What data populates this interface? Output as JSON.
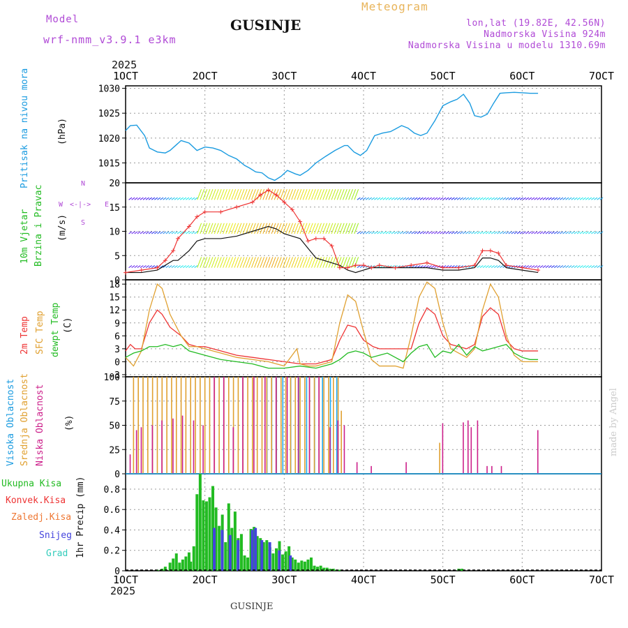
{
  "header": {
    "model_label": "Model",
    "model_name": "wrf-nmm_v3.9.1 e3km",
    "title": "GUSINJE",
    "meteogram": "Meteogram",
    "lonlat": "lon,lat (19.82E, 42.56N)",
    "elevation": "Nadmorska Visina 924m",
    "model_elevation": "Nadmorska Visina u modelu 1310.69m",
    "year_top": "2025",
    "footer_title": "GUSINJE",
    "watermark": "made by Angel"
  },
  "colors": {
    "pressure": "#1a9be0",
    "temp2m": "#ee3333",
    "sfc": "#e0a030",
    "dewpt": "#22bb22",
    "high_cloud": "#22aaee",
    "mid_cloud": "#e0a030",
    "low_cloud": "#cc1f8a",
    "wind_speed": "#111111",
    "wind_gust": "#ee3333",
    "precip_total": "#22bb22",
    "precip_conv": "#ee3333",
    "precip_strat": "#ee7733",
    "snow": "#4444dd",
    "graupel": "#33ccbb"
  },
  "chart_data": [
    {
      "id": "pressure",
      "type": "line",
      "title": "Pritisak na nivou mora",
      "ylabel": "(hPa)",
      "ylim": [
        1011,
        1030.5
      ],
      "yticks": [
        1015,
        1020,
        1025,
        1030
      ],
      "x": [
        1,
        1.3,
        1.7,
        2.2,
        2.5,
        3.0,
        3.5,
        3.8,
        4.5,
        5.0,
        5.5,
        6.0,
        6.5,
        7.0,
        7.5,
        8.0,
        8.5,
        8.8,
        9.2,
        9.6,
        10.0,
        10.4,
        10.8,
        11.2,
        11.7,
        12.0,
        12.5,
        13.0,
        13.6,
        14.2,
        14.8,
        15.0,
        15.4,
        15.8,
        16.2,
        16.7,
        17.2,
        17.7,
        18.0,
        18.4,
        18.8,
        19.2,
        19.6,
        20.0,
        20.5,
        21.0,
        21.5,
        21.9,
        22.3,
        22.7,
        23.0,
        23.4,
        23.8,
        24.2,
        24.6,
        25.0,
        25.5,
        26.0,
        26.5,
        27.0
      ],
      "values": [
        1021.5,
        1022.5,
        1022.6,
        1020.5,
        1018.0,
        1017.2,
        1017.0,
        1017.5,
        1019.5,
        1019.0,
        1017.5,
        1018.2,
        1018.0,
        1017.5,
        1016.5,
        1015.8,
        1014.5,
        1014.0,
        1013.2,
        1013.0,
        1012.0,
        1011.5,
        1012.3,
        1013.5,
        1012.8,
        1012.5,
        1013.5,
        1015.0,
        1016.3,
        1017.5,
        1018.5,
        1018.5,
        1017.2,
        1016.5,
        1017.5,
        1020.5,
        1021.0,
        1021.3,
        1021.8,
        1022.5,
        1022.0,
        1021.0,
        1020.5,
        1021.0,
        1023.5,
        1026.5,
        1027.3,
        1027.8,
        1028.8,
        1027.0,
        1024.5,
        1024.2,
        1024.8,
        1027.0,
        1029.0,
        1029.1,
        1029.2,
        1029.1,
        1029.0,
        1029.0
      ]
    },
    {
      "id": "wind",
      "type": "line",
      "title": "10m Vjetar Brzina i Pravac",
      "title_lines": [
        "10m Vjetar",
        "Brzina i Pravac"
      ],
      "ylabel": "(m/s)",
      "compass": [
        "N",
        "<-|->",
        "W",
        "E",
        "S"
      ],
      "ylim": [
        0,
        20
      ],
      "yticks": [
        0,
        5,
        10,
        15,
        20
      ],
      "x": [
        1,
        2,
        3,
        3.5,
        4,
        4.3,
        5,
        5.5,
        6,
        7,
        8,
        9,
        9.5,
        10,
        10.5,
        11,
        11.5,
        12,
        12.5,
        13,
        13.5,
        14,
        14.5,
        15,
        15.5,
        16,
        16.5,
        17,
        18,
        19,
        20,
        21,
        22,
        23,
        23.5,
        24,
        24.5,
        25,
        26,
        27
      ],
      "speed": [
        1.5,
        1.5,
        2.0,
        3.0,
        4.0,
        4.0,
        6.0,
        8.0,
        8.5,
        8.5,
        9.0,
        10.0,
        10.5,
        11.0,
        10.5,
        9.5,
        9.0,
        8.5,
        6.5,
        4.5,
        4.0,
        3.5,
        3.0,
        2.0,
        1.5,
        2.0,
        2.5,
        2.5,
        2.5,
        2.5,
        2.5,
        2.0,
        2.0,
        2.5,
        4.5,
        4.5,
        4.0,
        2.5,
        2.0,
        1.5
      ],
      "gust": [
        1.5,
        2.0,
        2.5,
        4.0,
        6.0,
        8.5,
        11.0,
        13.0,
        14.0,
        14.0,
        15.0,
        16.0,
        17.5,
        18.5,
        17.5,
        16.0,
        14.5,
        12.0,
        8.0,
        8.5,
        8.5,
        7.0,
        2.5,
        2.5,
        3.0,
        3.0,
        2.5,
        3.0,
        2.5,
        3.0,
        3.5,
        2.5,
        2.5,
        3.0,
        6.0,
        6.0,
        5.5,
        3.0,
        2.5,
        2.0
      ]
    },
    {
      "id": "temperature",
      "type": "line",
      "title_lines": [
        "2m Temp",
        "SFC Temp",
        "dewpt Temp"
      ],
      "ylabel": "(C)",
      "ylim": [
        -3.5,
        19
      ],
      "yticks": [
        -3,
        0,
        3,
        6,
        9,
        12,
        15,
        18
      ],
      "series": [
        {
          "name": "2m Temp",
          "x": [
            1,
            1.3,
            1.6,
            2.0,
            2.5,
            3.0,
            3.3,
            3.8,
            4.5,
            5.0,
            5.5,
            6.0,
            7.0,
            8.0,
            9.0,
            10.0,
            11.0,
            12.0,
            13.0,
            14.0,
            14.5,
            15.0,
            15.5,
            16.0,
            16.6,
            17.0,
            18.0,
            19.0,
            19.5,
            20.0,
            20.5,
            21.0,
            21.5,
            22.0,
            22.5,
            23.0,
            23.5,
            24.0,
            24.5,
            25.0,
            25.5,
            26.0,
            27.0
          ],
          "values": [
            2.5,
            4.0,
            3.0,
            3.0,
            9.0,
            12.0,
            11.0,
            8.0,
            6.0,
            4.0,
            3.5,
            3.5,
            2.5,
            1.5,
            1.0,
            0.5,
            0.0,
            -0.5,
            -0.5,
            0.5,
            5.0,
            8.5,
            8.0,
            5.0,
            3.5,
            3.0,
            3.0,
            3.0,
            9.0,
            12.5,
            11.0,
            6.0,
            4.0,
            3.5,
            3.0,
            4.0,
            10.5,
            12.5,
            11.0,
            5.0,
            3.0,
            2.5,
            2.5
          ]
        },
        {
          "name": "SFC Temp",
          "x": [
            1,
            1.5,
            2.0,
            2.5,
            3.0,
            3.3,
            3.8,
            4.5,
            5.0,
            5.5,
            6.0,
            7.0,
            8.0,
            9.0,
            10.0,
            11.0,
            11.8,
            12.0,
            12.5,
            13.0,
            14.0,
            14.5,
            15.0,
            15.5,
            16.0,
            16.5,
            17.0,
            18.0,
            18.5,
            19.0,
            19.5,
            20.0,
            20.5,
            21.0,
            21.5,
            22.0,
            22.5,
            23.0,
            23.5,
            24.0,
            24.5,
            25.0,
            25.5,
            26.0,
            27.0
          ],
          "values": [
            1.0,
            -1.0,
            2.5,
            12.0,
            18.0,
            17.0,
            11.0,
            6.0,
            3.5,
            3.5,
            3.0,
            2.0,
            1.0,
            0.5,
            0.0,
            -1.0,
            3.0,
            -0.5,
            -1.0,
            -1.0,
            0.0,
            9.0,
            15.5,
            14.0,
            7.0,
            0.5,
            -1.0,
            -1.0,
            -1.5,
            6.0,
            15.0,
            18.5,
            17.0,
            9.0,
            3.0,
            2.0,
            1.0,
            3.0,
            12.0,
            18.0,
            15.0,
            6.0,
            1.5,
            0.0,
            0.0
          ]
        },
        {
          "name": "dewpt Temp",
          "x": [
            1,
            1.5,
            2.0,
            2.5,
            3.0,
            3.5,
            4.0,
            4.5,
            5.0,
            5.5,
            6.0,
            7.0,
            8.0,
            9.0,
            10.0,
            11.0,
            12.0,
            13.0,
            14.0,
            14.5,
            15.0,
            15.5,
            16.0,
            16.5,
            17.0,
            17.5,
            18.0,
            18.5,
            19.0,
            19.5,
            20.0,
            20.5,
            21.0,
            21.5,
            22.0,
            22.5,
            23.0,
            23.5,
            24.0,
            24.5,
            25.0,
            25.5,
            26.0,
            26.5,
            27.0
          ],
          "values": [
            1.0,
            2.0,
            2.5,
            3.5,
            3.5,
            4.0,
            3.5,
            4.0,
            2.5,
            2.0,
            1.5,
            0.5,
            0.0,
            -0.5,
            -1.5,
            -1.5,
            -1.0,
            -1.5,
            -0.5,
            0.5,
            2.0,
            2.5,
            2.0,
            1.0,
            1.5,
            2.0,
            1.0,
            0.0,
            2.0,
            3.5,
            4.0,
            1.0,
            2.5,
            2.0,
            4.0,
            1.5,
            3.5,
            2.5,
            3.0,
            3.5,
            4.0,
            2.0,
            1.0,
            0.5,
            0.5
          ]
        }
      ]
    },
    {
      "id": "clouds",
      "type": "bar",
      "title_lines": [
        "Visoka Oblacnost",
        "Srednja Oblacnost",
        "Niska Oblacnost"
      ],
      "ylabel": "(%)",
      "ylim": [
        0,
        100
      ],
      "yticks": [
        0,
        25,
        50,
        75,
        100
      ],
      "series": [
        {
          "name": "Visoka Oblacnost",
          "x": [
            10.0,
            10.3,
            10.6,
            11.0,
            11.5,
            12.0,
            12.5,
            13.0,
            13.5,
            14.0,
            14.4
          ],
          "values": [
            100,
            100,
            100,
            100,
            100,
            100,
            100,
            100,
            100,
            100,
            100
          ]
        },
        {
          "name": "Srednja Oblacnost",
          "x": [
            1.5,
            1.8,
            2.1,
            2.4,
            2.7,
            3.0,
            3.3,
            3.6,
            3.9,
            4.2,
            4.5,
            4.8,
            5.1,
            5.4,
            5.7,
            6.0,
            6.3,
            6.6,
            6.9,
            7.2,
            7.5,
            7.8,
            8.1,
            8.4,
            8.7,
            9.0,
            9.3,
            9.6,
            9.9,
            10.2,
            10.5,
            10.8,
            11.1,
            11.4,
            11.7,
            12.0,
            12.3,
            12.6,
            12.9,
            13.2,
            13.5,
            13.8,
            14.1,
            14.4,
            14.6,
            20.8
          ],
          "values": [
            100,
            100,
            100,
            100,
            100,
            100,
            100,
            100,
            100,
            100,
            100,
            100,
            100,
            100,
            100,
            100,
            100,
            100,
            100,
            100,
            100,
            100,
            100,
            100,
            100,
            100,
            100,
            100,
            100,
            100,
            100,
            100,
            100,
            100,
            100,
            100,
            100,
            100,
            100,
            100,
            100,
            100,
            100,
            100,
            65,
            32
          ]
        },
        {
          "name": "Niska Oblacnost",
          "x": [
            1.2,
            1.6,
            1.9,
            2.6,
            3.2,
            3.9,
            4.5,
            5.2,
            5.8,
            6.5,
            7.1,
            7.7,
            8.3,
            9.0,
            9.7,
            10.4,
            11.1,
            11.8,
            12.5,
            13.1,
            13.8,
            14.3,
            14.7,
            15.5,
            16.4,
            18.6,
            20.9,
            22.2,
            22.5,
            22.7,
            23.1,
            23.7,
            24.0,
            24.6,
            26.9
          ],
          "values": [
            20,
            45,
            48,
            50,
            55,
            57,
            60,
            55,
            50,
            100,
            100,
            48,
            100,
            100,
            100,
            100,
            100,
            100,
            100,
            100,
            48,
            55,
            50,
            12,
            8,
            12,
            52,
            53,
            55,
            48,
            55,
            8,
            8,
            8,
            45
          ]
        }
      ]
    },
    {
      "id": "precip",
      "type": "bar",
      "ylabel": "1hr Precip (mm)",
      "legend": [
        "Ukupna Kisa",
        "Konvek.Kisa",
        "Zaledj.Kisa",
        "Snijeg",
        "Grad"
      ],
      "ylim": [
        0,
        0.95
      ],
      "yticks": [
        0,
        0.2,
        0.4,
        0.6,
        0.8
      ],
      "series": [
        {
          "name": "Ukupna Kisa",
          "x": [
            3.0,
            3.3,
            3.5,
            3.8,
            4.0,
            4.2,
            4.4,
            4.6,
            4.8,
            5.0,
            5.1,
            5.3,
            5.5,
            5.7,
            5.9,
            6.1,
            6.3,
            6.5,
            6.7,
            6.9,
            7.1,
            7.3,
            7.5,
            7.7,
            7.9,
            8.1,
            8.3,
            8.5,
            8.7,
            8.9,
            9.1,
            9.3,
            9.5,
            9.7,
            9.9,
            10.1,
            10.3,
            10.5,
            10.7,
            10.9,
            11.1,
            11.3,
            11.5,
            11.7,
            11.9,
            12.1,
            12.3,
            12.5,
            12.7,
            12.9,
            13.1,
            13.3,
            13.5,
            13.7,
            13.9,
            14.1,
            14.3,
            14.5,
            22.0,
            22.2
          ],
          "values": [
            0.01,
            0.02,
            0.04,
            0.08,
            0.12,
            0.17,
            0.08,
            0.11,
            0.14,
            0.18,
            0.09,
            0.24,
            0.75,
            0.95,
            0.69,
            0.68,
            0.72,
            0.83,
            0.62,
            0.44,
            0.55,
            0.28,
            0.66,
            0.42,
            0.58,
            0.32,
            0.36,
            0.15,
            0.13,
            0.41,
            0.43,
            0.34,
            0.32,
            0.28,
            0.3,
            0.23,
            0.17,
            0.22,
            0.29,
            0.16,
            0.19,
            0.24,
            0.13,
            0.11,
            0.08,
            0.1,
            0.09,
            0.11,
            0.13,
            0.05,
            0.04,
            0.05,
            0.03,
            0.03,
            0.02,
            0.02,
            0.01,
            0.01,
            0.02,
            0.02
          ]
        },
        {
          "name": "Snijeg",
          "x": [
            6.5,
            7.0,
            7.5,
            8.0,
            8.9,
            9.1,
            9.5,
            10.0,
            10.6,
            11.3
          ],
          "values": [
            0.42,
            0.4,
            0.35,
            0.3,
            0.4,
            0.42,
            0.3,
            0.28,
            0.2,
            0.15
          ]
        }
      ]
    }
  ],
  "xaxis": {
    "ticks": [
      {
        "day": 1,
        "label": "1OCT"
      },
      {
        "day": 6,
        "label": "2OCT"
      },
      {
        "day": 11,
        "label": "3OCT"
      },
      {
        "day": 16,
        "label": "4OCT"
      },
      {
        "day": 21,
        "label": "5OCT"
      },
      {
        "day": 26,
        "label": "6OCT"
      },
      {
        "day": 31,
        "label": "7OCT"
      }
    ],
    "year": "2025"
  },
  "wind_legend_label": "10m Vjetar Brzina i Pravac"
}
